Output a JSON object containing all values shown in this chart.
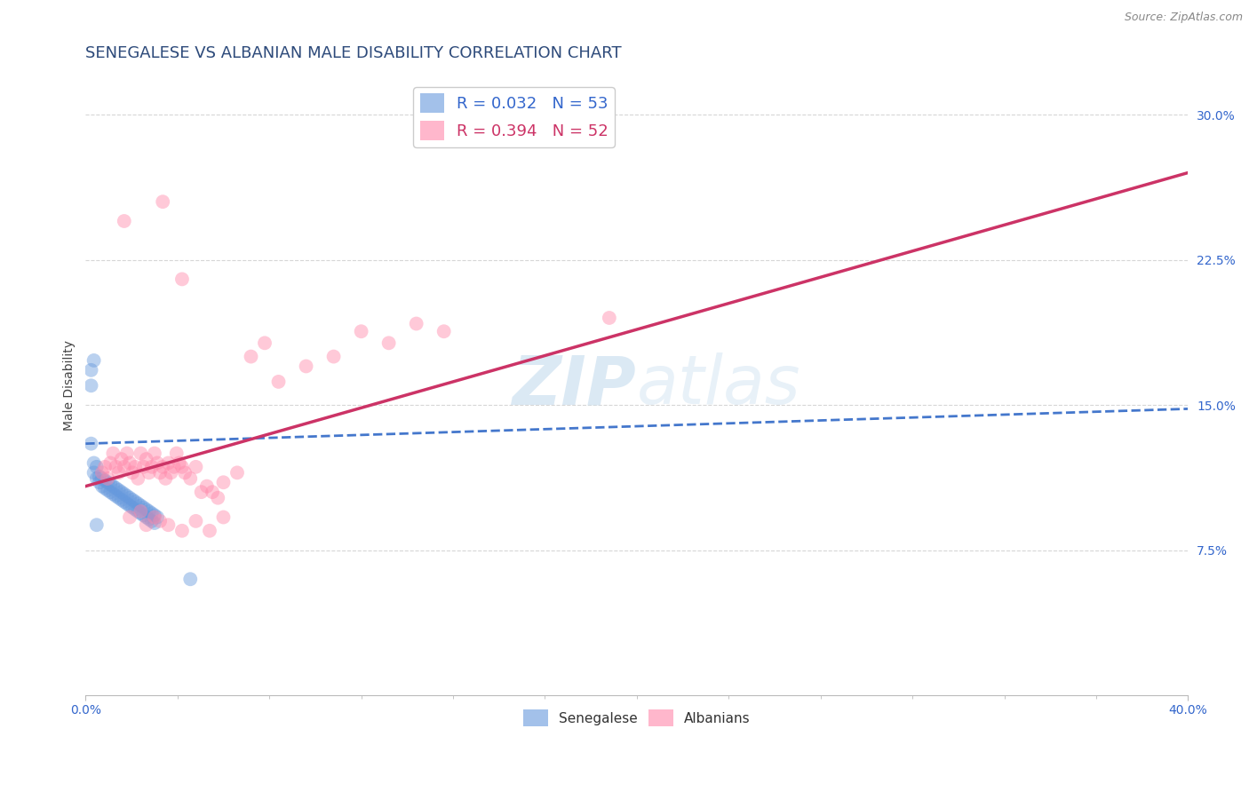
{
  "title": "SENEGALESE VS ALBANIAN MALE DISABILITY CORRELATION CHART",
  "source": "Source: ZipAtlas.com",
  "ylabel": "Male Disability",
  "xlim": [
    0.0,
    0.4
  ],
  "ylim": [
    0.0,
    0.32
  ],
  "yticks": [
    0.075,
    0.15,
    0.225,
    0.3
  ],
  "title_color": "#2d4a7a",
  "title_fontsize": 13,
  "source_fontsize": 9,
  "source_color": "#888888",
  "senegalese_color": "#6699dd",
  "albanian_color": "#ff88aa",
  "senegalese_R": 0.032,
  "senegalese_N": 53,
  "albanian_R": 0.394,
  "albanian_N": 52,
  "sen_line_color": "#4477cc",
  "alb_line_color": "#cc3366",
  "legend_sen_color": "#3366cc",
  "legend_alb_color": "#cc3366",
  "background_color": "#ffffff",
  "grid_color": "#cccccc",
  "watermark_color": "#cce0f0",
  "senegalese_x": [
    0.002,
    0.003,
    0.003,
    0.004,
    0.004,
    0.005,
    0.005,
    0.006,
    0.006,
    0.007,
    0.007,
    0.008,
    0.008,
    0.009,
    0.009,
    0.01,
    0.01,
    0.011,
    0.011,
    0.012,
    0.012,
    0.013,
    0.013,
    0.014,
    0.014,
    0.015,
    0.015,
    0.016,
    0.016,
    0.017,
    0.017,
    0.018,
    0.018,
    0.019,
    0.019,
    0.02,
    0.02,
    0.021,
    0.021,
    0.022,
    0.022,
    0.023,
    0.023,
    0.024,
    0.024,
    0.025,
    0.025,
    0.026,
    0.002,
    0.002,
    0.003,
    0.038,
    0.004
  ],
  "senegalese_y": [
    0.13,
    0.12,
    0.115,
    0.118,
    0.112,
    0.113,
    0.11,
    0.112,
    0.108,
    0.111,
    0.107,
    0.11,
    0.106,
    0.109,
    0.105,
    0.108,
    0.104,
    0.107,
    0.103,
    0.106,
    0.102,
    0.105,
    0.101,
    0.104,
    0.1,
    0.103,
    0.099,
    0.102,
    0.098,
    0.101,
    0.097,
    0.1,
    0.096,
    0.099,
    0.095,
    0.098,
    0.094,
    0.097,
    0.093,
    0.096,
    0.092,
    0.095,
    0.091,
    0.094,
    0.09,
    0.093,
    0.089,
    0.092,
    0.16,
    0.168,
    0.173,
    0.06,
    0.088
  ],
  "albanian_x": [
    0.006,
    0.007,
    0.008,
    0.009,
    0.01,
    0.011,
    0.012,
    0.013,
    0.014,
    0.015,
    0.016,
    0.017,
    0.018,
    0.019,
    0.02,
    0.021,
    0.022,
    0.023,
    0.024,
    0.025,
    0.026,
    0.027,
    0.028,
    0.029,
    0.03,
    0.031,
    0.032,
    0.033,
    0.034,
    0.035,
    0.036,
    0.038,
    0.04,
    0.042,
    0.044,
    0.046,
    0.048,
    0.05,
    0.055,
    0.06,
    0.065,
    0.07,
    0.08,
    0.09,
    0.1,
    0.11,
    0.12,
    0.13,
    0.19,
    0.035,
    0.014,
    0.028
  ],
  "albanian_y": [
    0.115,
    0.118,
    0.112,
    0.12,
    0.125,
    0.118,
    0.115,
    0.122,
    0.118,
    0.125,
    0.12,
    0.115,
    0.118,
    0.112,
    0.125,
    0.118,
    0.122,
    0.115,
    0.118,
    0.125,
    0.12,
    0.115,
    0.118,
    0.112,
    0.12,
    0.115,
    0.118,
    0.125,
    0.12,
    0.118,
    0.115,
    0.112,
    0.118,
    0.105,
    0.108,
    0.105,
    0.102,
    0.11,
    0.115,
    0.175,
    0.182,
    0.162,
    0.17,
    0.175,
    0.188,
    0.182,
    0.192,
    0.188,
    0.195,
    0.215,
    0.245,
    0.255
  ],
  "alb_extra_x": [
    0.016,
    0.02,
    0.022,
    0.025,
    0.027,
    0.03,
    0.035,
    0.04,
    0.045,
    0.05
  ],
  "alb_extra_y": [
    0.092,
    0.095,
    0.088,
    0.092,
    0.09,
    0.088,
    0.085,
    0.09,
    0.085,
    0.092
  ]
}
